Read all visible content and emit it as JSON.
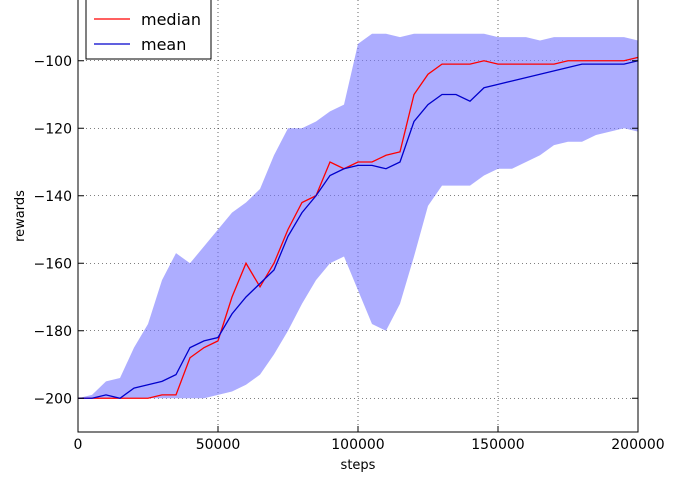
{
  "chart_data": {
    "type": "line",
    "xlabel": "steps",
    "ylabel": "rewards",
    "xlim": [
      0,
      200000
    ],
    "ylim": [
      -210,
      -82
    ],
    "xticks": [
      0,
      50000,
      100000,
      150000,
      200000
    ],
    "yticks": [
      -200,
      -180,
      -160,
      -140,
      -120,
      -100
    ],
    "grid": true,
    "legend_position": "top-left",
    "colors": {
      "median": "#ff0000",
      "mean": "#0000cc",
      "band": "#7777ff"
    },
    "legend": [
      "median",
      "mean"
    ],
    "x": [
      0,
      5000,
      10000,
      15000,
      20000,
      25000,
      30000,
      35000,
      40000,
      45000,
      50000,
      55000,
      60000,
      65000,
      70000,
      75000,
      80000,
      85000,
      90000,
      95000,
      100000,
      105000,
      110000,
      115000,
      120000,
      125000,
      130000,
      135000,
      140000,
      145000,
      150000,
      155000,
      160000,
      165000,
      170000,
      175000,
      180000,
      185000,
      190000,
      195000,
      200000
    ],
    "series": [
      {
        "name": "median",
        "values": [
          -200,
          -200,
          -200,
          -200,
          -200,
          -200,
          -199,
          -199,
          -188,
          -185,
          -183,
          -170,
          -160,
          -167,
          -160,
          -150,
          -142,
          -140,
          -130,
          -132,
          -130,
          -130,
          -128,
          -127,
          -110,
          -104,
          -101,
          -101,
          -101,
          -100,
          -101,
          -101,
          -101,
          -101,
          -101,
          -100,
          -100,
          -100,
          -100,
          -100,
          -99
        ]
      },
      {
        "name": "mean",
        "values": [
          -200,
          -200,
          -199,
          -200,
          -197,
          -196,
          -195,
          -193,
          -185,
          -183,
          -182,
          -175,
          -170,
          -166,
          -162,
          -152,
          -145,
          -140,
          -134,
          -132,
          -131,
          -131,
          -132,
          -130,
          -118,
          -113,
          -110,
          -110,
          -112,
          -108,
          -107,
          -106,
          -105,
          -104,
          -103,
          -102,
          -101,
          -101,
          -101,
          -101,
          -100
        ]
      },
      {
        "name": "upper",
        "values": [
          -200,
          -199,
          -195,
          -194,
          -185,
          -178,
          -165,
          -157,
          -160,
          -155,
          -150,
          -145,
          -142,
          -138,
          -128,
          -120,
          -120,
          -118,
          -115,
          -113,
          -95,
          -92,
          -92,
          -93,
          -92,
          -92,
          -92,
          -92,
          -92,
          -92,
          -93,
          -93,
          -93,
          -94,
          -93,
          -93,
          -93,
          -93,
          -93,
          -93,
          -94
        ]
      },
      {
        "name": "lower",
        "values": [
          -200,
          -200,
          -200,
          -200,
          -200,
          -200,
          -200,
          -200,
          -200,
          -200,
          -199,
          -198,
          -196,
          -193,
          -187,
          -180,
          -172,
          -165,
          -160,
          -158,
          -168,
          -178,
          -180,
          -172,
          -158,
          -143,
          -137,
          -137,
          -137,
          -134,
          -132,
          -132,
          -130,
          -128,
          -125,
          -124,
          -124,
          -122,
          -121,
          -120,
          -121
        ]
      }
    ]
  }
}
